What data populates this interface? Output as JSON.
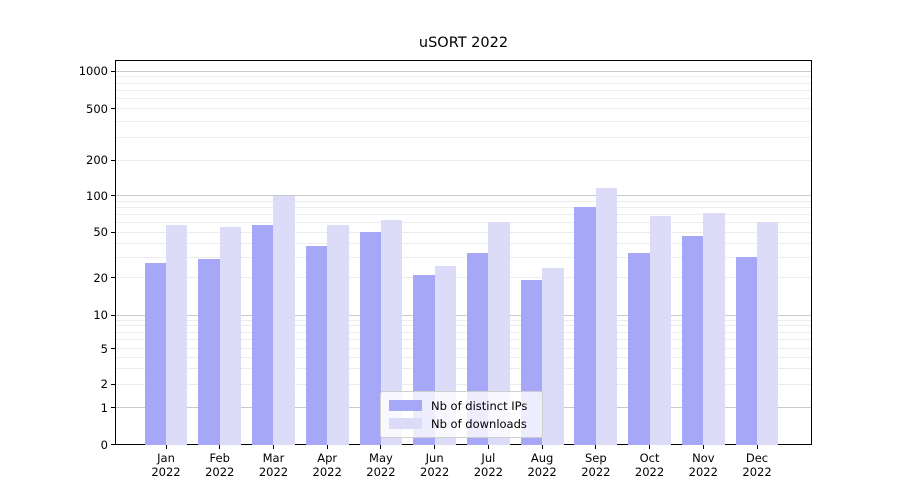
{
  "chart_data": {
    "type": "bar",
    "title": "uSORT 2022",
    "x_months": [
      "Jan",
      "Feb",
      "Mar",
      "Apr",
      "May",
      "Jun",
      "Jul",
      "Aug",
      "Sep",
      "Oct",
      "Nov",
      "Dec"
    ],
    "x_year": "2022",
    "series": [
      {
        "name": "Nb of distinct IPs",
        "color": "#a7a7f7",
        "values": [
          27,
          29,
          57,
          38,
          50,
          21,
          33,
          19,
          80,
          33,
          46,
          30
        ]
      },
      {
        "name": "Nb of downloads",
        "color": "#dcdcf9",
        "values": [
          57,
          55,
          100,
          57,
          63,
          25,
          60,
          24,
          115,
          68,
          72,
          60
        ]
      }
    ],
    "y_scale": "symlog",
    "y_tick_labels": [
      "1000",
      "500",
      "200",
      "100",
      "50",
      "20",
      "10",
      "5",
      "2",
      "1",
      "0"
    ],
    "y_tick_values": [
      1000,
      500,
      200,
      100,
      50,
      20,
      10,
      5,
      2,
      1,
      0
    ],
    "minor_grid_values": [
      2,
      3,
      4,
      5,
      6,
      7,
      8,
      9,
      20,
      30,
      40,
      50,
      60,
      70,
      80,
      90,
      200,
      300,
      400,
      500,
      600,
      700,
      800,
      900
    ],
    "major_grid_values": [
      1,
      10,
      100,
      1000
    ],
    "ylim": [
      0,
      1000
    ],
    "grid": true,
    "legend_position": "lower center",
    "colors": {
      "grid_minor": "#ececec",
      "grid_major": "#c9c9c9",
      "axis": "#000000"
    }
  }
}
